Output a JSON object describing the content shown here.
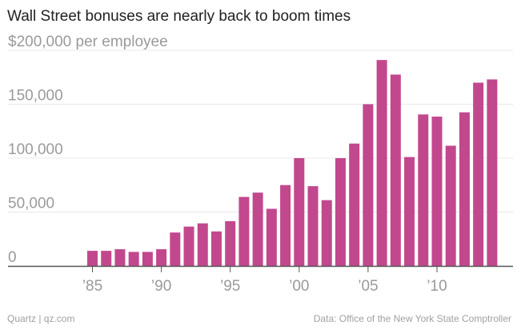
{
  "colors": {
    "bar": "#c2488e",
    "grid": "#e8e8e8",
    "axis": "#555555",
    "tick": "#9a9a9a"
  },
  "chart_data": {
    "type": "bar",
    "title": "Wall Street bonuses are nearly back to boom times",
    "ylabel": "",
    "xlabel": "",
    "ylim": [
      0,
      200000
    ],
    "y_ticks": [
      0,
      50000,
      100000,
      150000,
      200000
    ],
    "y_tick_labels": [
      "0",
      "50,000",
      "100,000",
      "150,000",
      "$200,000 per employee"
    ],
    "x_tick_labels": [
      {
        "year": 1985,
        "label": "’85"
      },
      {
        "year": 1990,
        "label": "’90"
      },
      {
        "year": 1995,
        "label": "’95"
      },
      {
        "year": 2000,
        "label": "’00"
      },
      {
        "year": 2005,
        "label": "’05"
      },
      {
        "year": 2010,
        "label": "’10"
      }
    ],
    "categories": [
      1985,
      1986,
      1987,
      1988,
      1989,
      1990,
      1991,
      1992,
      1993,
      1994,
      1995,
      1996,
      1997,
      1998,
      1999,
      2000,
      2001,
      2002,
      2003,
      2004,
      2005,
      2006,
      2007,
      2008,
      2009,
      2010,
      2011,
      2012,
      2013,
      2014
    ],
    "values": [
      14000,
      14000,
      15500,
      13000,
      13000,
      15500,
      31000,
      36500,
      39500,
      32000,
      41500,
      64000,
      68000,
      53000,
      75000,
      100000,
      74000,
      61000,
      100000,
      113500,
      150000,
      191000,
      177500,
      101000,
      140500,
      138500,
      111500,
      142500,
      170000,
      173000
    ],
    "grid": true,
    "legend": "none"
  },
  "footer": {
    "source": "Quartz | qz.com",
    "credit": "Data: Office of the New York State Comptroller"
  }
}
